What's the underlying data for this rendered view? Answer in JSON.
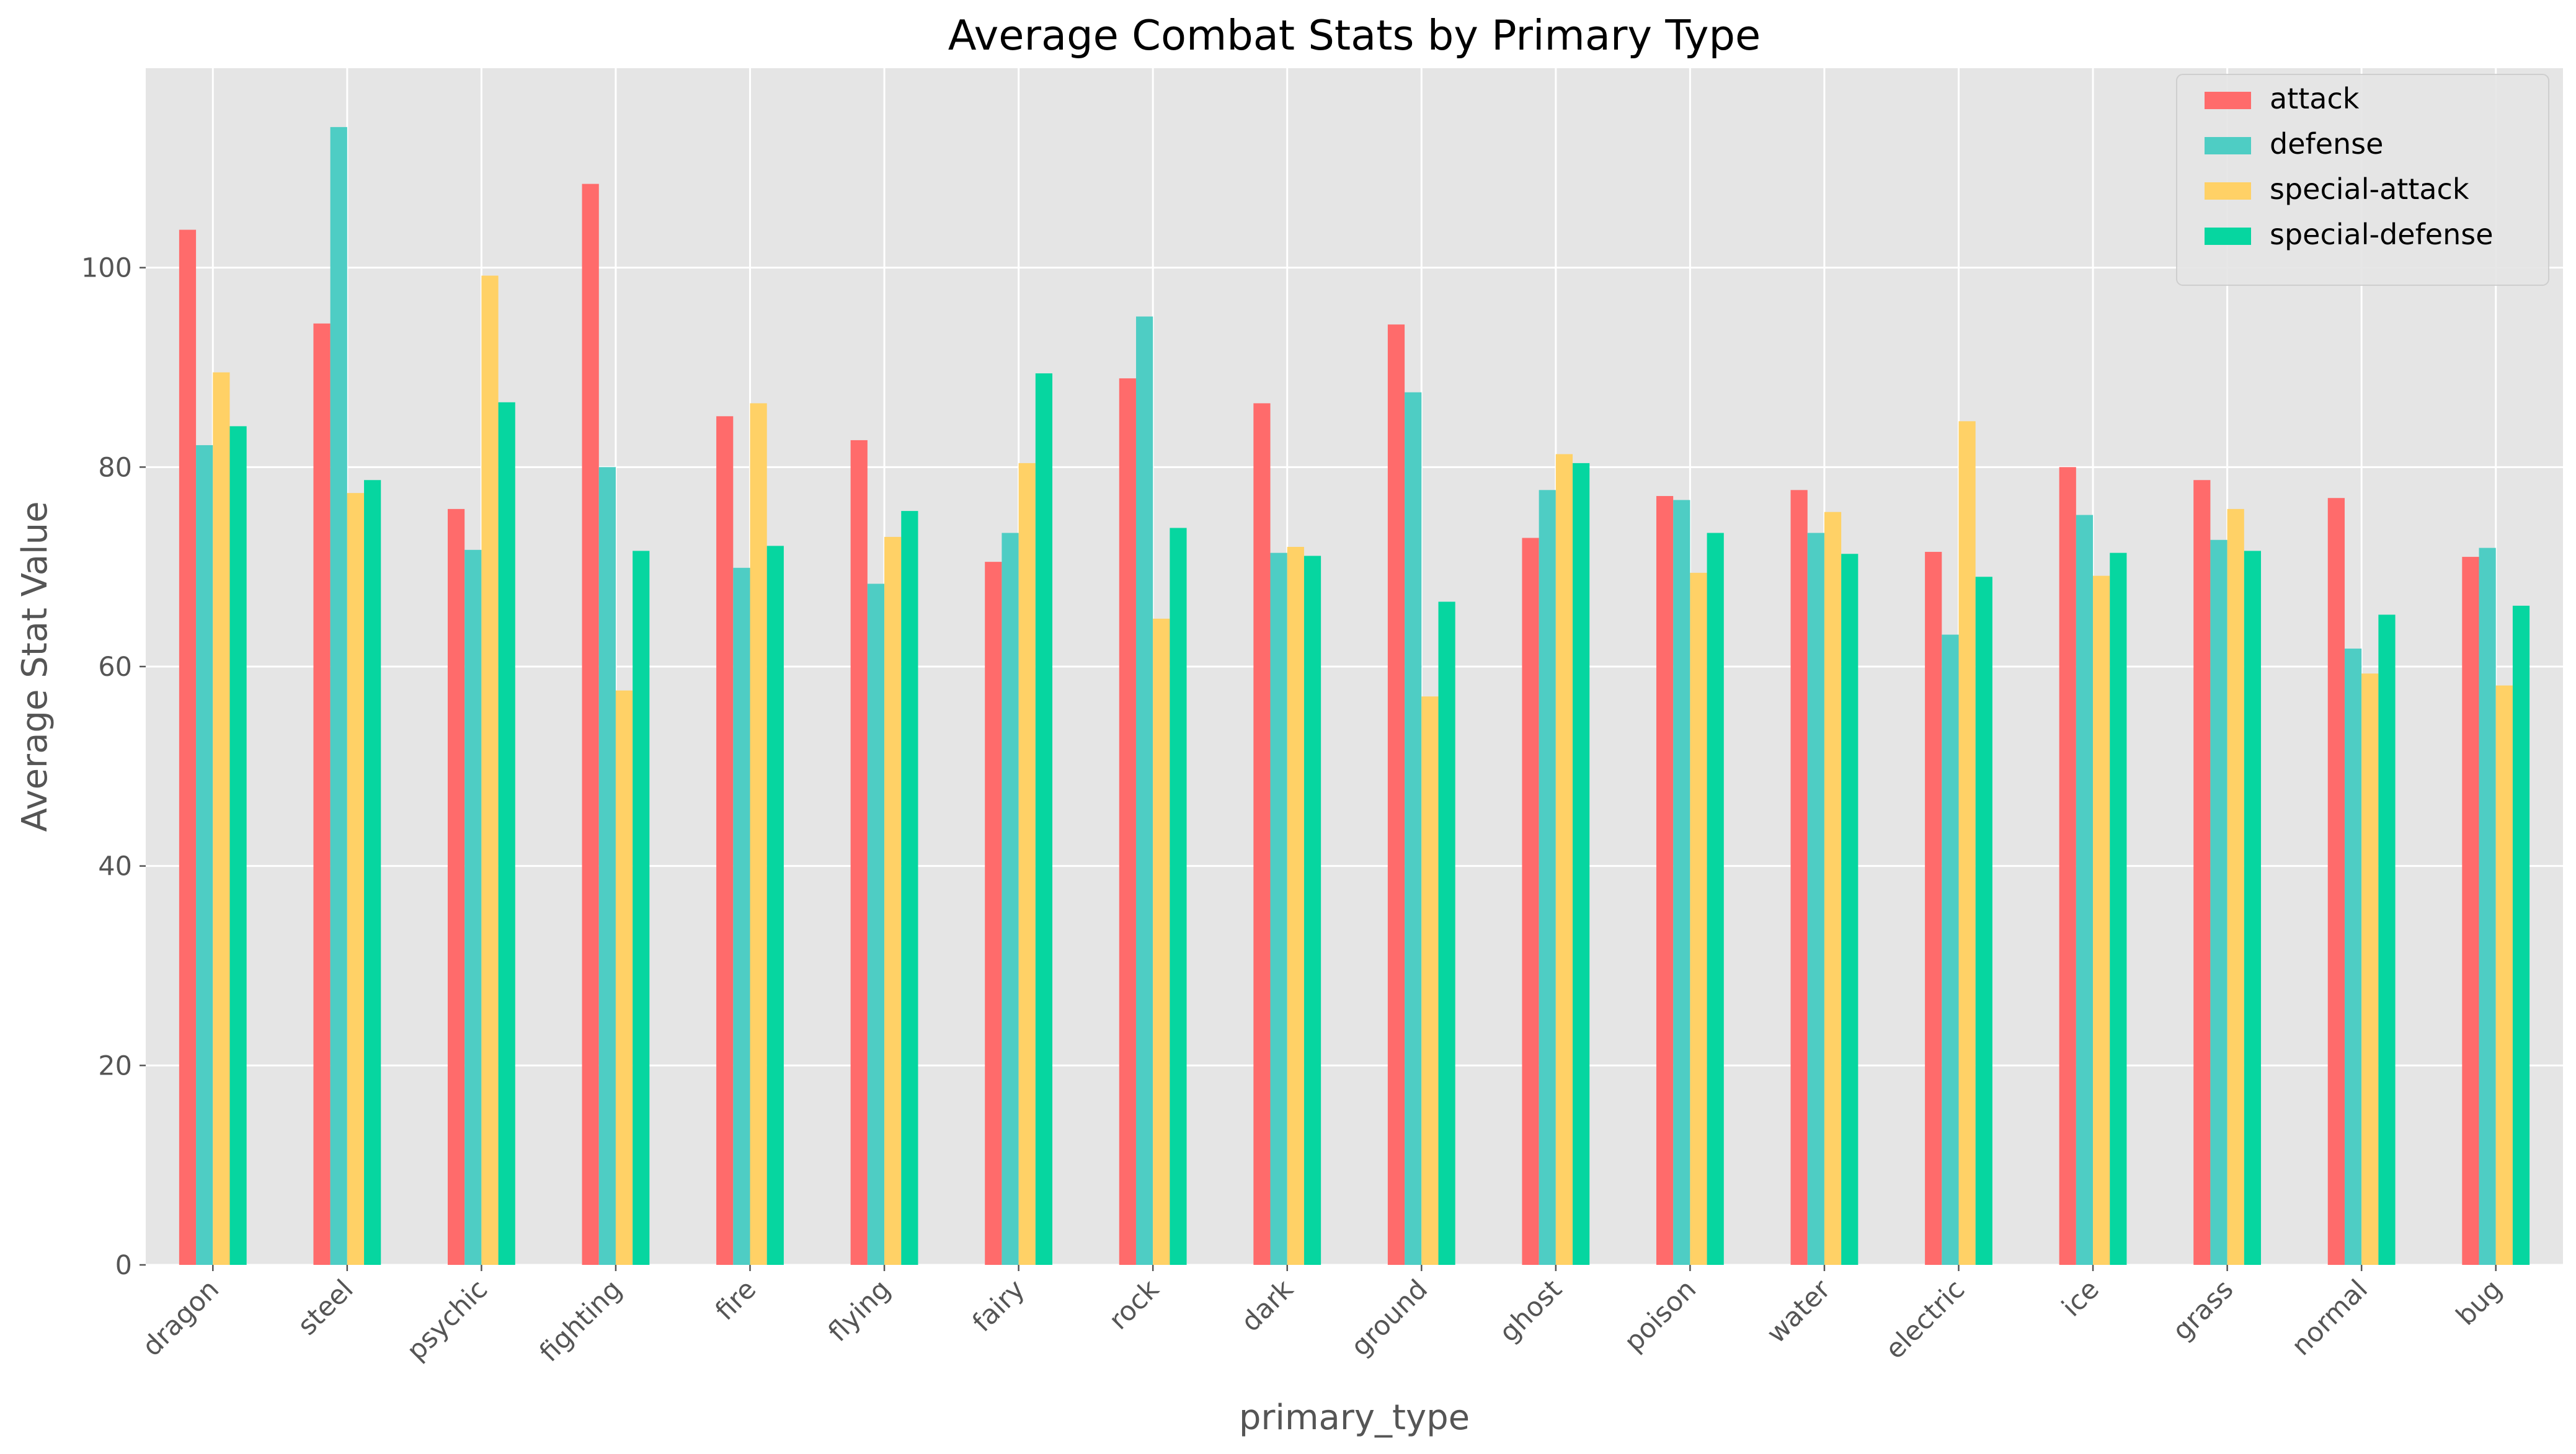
{
  "chart_data": {
    "type": "bar",
    "title": "Average Combat Stats by Primary Type",
    "xlabel": "primary_type",
    "ylabel": "Average Stat Value",
    "ylim": [
      0,
      120
    ],
    "yticks": [
      0,
      20,
      40,
      60,
      80,
      100
    ],
    "grid": true,
    "legend_position": "top-right",
    "categories": [
      "dragon",
      "steel",
      "psychic",
      "fighting",
      "fire",
      "flying",
      "fairy",
      "rock",
      "dark",
      "ground",
      "ghost",
      "poison",
      "water",
      "electric",
      "ice",
      "grass",
      "normal",
      "bug"
    ],
    "series": [
      {
        "name": "attack",
        "color": "#ff6b6b",
        "values": [
          103.8,
          94.4,
          75.8,
          108.4,
          85.1,
          82.7,
          70.5,
          88.9,
          86.4,
          94.3,
          72.9,
          77.1,
          77.7,
          71.5,
          80.0,
          78.7,
          76.9,
          71.0
        ]
      },
      {
        "name": "defense",
        "color": "#4ecdc4",
        "values": [
          82.2,
          114.1,
          71.7,
          80.0,
          69.9,
          68.3,
          73.4,
          95.1,
          71.4,
          87.5,
          77.7,
          76.7,
          73.4,
          63.2,
          75.2,
          72.7,
          61.8,
          71.9
        ]
      },
      {
        "name": "special-attack",
        "color": "#ffd166",
        "values": [
          89.5,
          77.4,
          99.2,
          57.6,
          86.4,
          73.0,
          80.4,
          64.8,
          72.0,
          57.0,
          81.3,
          69.4,
          75.5,
          84.6,
          69.1,
          75.8,
          59.3,
          58.1
        ]
      },
      {
        "name": "special-defense",
        "color": "#06d6a0",
        "values": [
          84.1,
          78.7,
          86.5,
          71.6,
          72.1,
          75.6,
          89.4,
          73.9,
          71.1,
          66.5,
          80.4,
          73.4,
          71.3,
          69.0,
          71.4,
          71.6,
          65.2,
          66.1
        ]
      }
    ]
  }
}
